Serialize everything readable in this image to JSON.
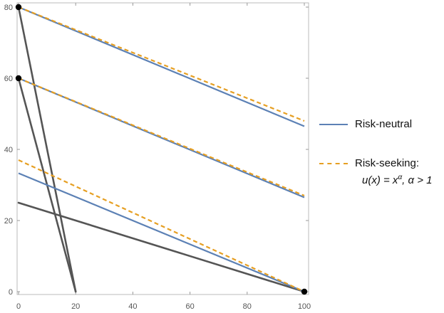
{
  "chart_data": {
    "type": "line",
    "title": "",
    "xlabel": "",
    "ylabel": "",
    "xlim": [
      0,
      100
    ],
    "ylim": [
      0,
      80
    ],
    "x_ticks": [
      0,
      20,
      40,
      60,
      80,
      100
    ],
    "y_ticks": [
      0,
      20,
      40,
      60,
      80
    ],
    "grid": false,
    "legend_position": "right",
    "series": [
      {
        "name": "Risk-neutral",
        "color": "#5c81b5",
        "dash": "solid",
        "lines": [
          [
            [
              0,
              80
            ],
            [
              100,
              46.5
            ]
          ],
          [
            [
              0,
              60
            ],
            [
              100,
              26.5
            ]
          ],
          [
            [
              0,
              33.3
            ],
            [
              100,
              0
            ]
          ]
        ]
      },
      {
        "name": "Risk-seeking:",
        "color": "#e69f22",
        "dash": "dashed",
        "lines": [
          [
            [
              0,
              80
            ],
            [
              100,
              48
            ]
          ],
          [
            [
              0,
              60
            ],
            [
              100,
              27
            ]
          ],
          [
            [
              0,
              37
            ],
            [
              100,
              0
            ]
          ]
        ]
      }
    ],
    "black_lines": [
      {
        "color": "#555555",
        "points": [
          [
            0,
            80
          ],
          [
            20,
            0
          ]
        ]
      },
      {
        "color": "#555555",
        "points": [
          [
            0,
            60
          ],
          [
            20,
            0
          ]
        ]
      },
      {
        "color": "#555555",
        "points": [
          [
            0,
            25
          ],
          [
            100,
            0
          ]
        ]
      }
    ],
    "points": [
      [
        0,
        80
      ],
      [
        0,
        60
      ],
      [
        100,
        0
      ]
    ],
    "point_color": "#000000"
  },
  "legend": {
    "items": [
      {
        "label": "Risk-neutral",
        "color": "#5c81b5",
        "style": "solid"
      },
      {
        "label": "Risk-seeking:",
        "color": "#e69f22",
        "style": "dashed"
      }
    ],
    "note": "u(x) = x^α, α > 1",
    "note_main": "u(x) = x",
    "note_sup": "α",
    "note_tail": ", α > 1"
  }
}
